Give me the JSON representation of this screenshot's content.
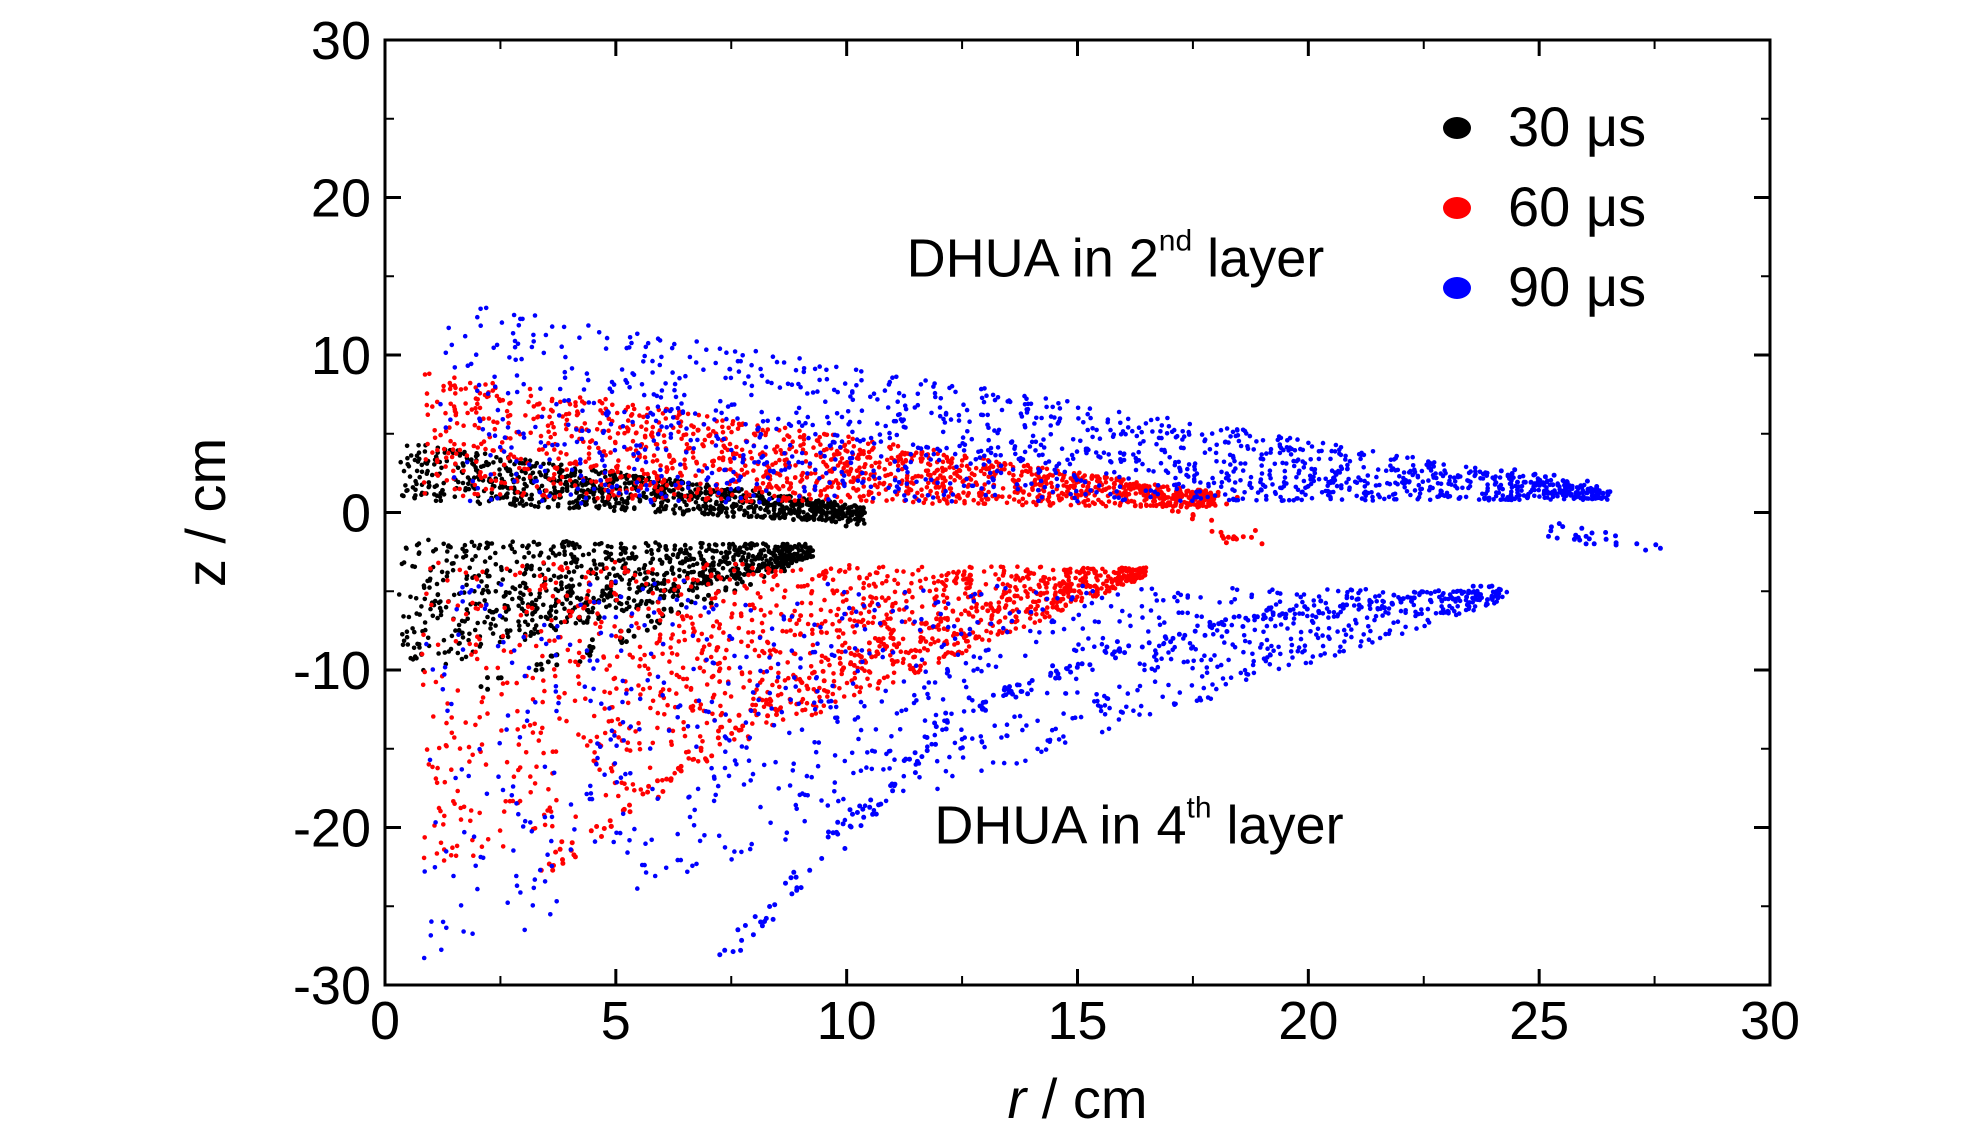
{
  "chart_data": {
    "type": "scatter",
    "xlabel": "r / cm",
    "ylabel": "z / cm",
    "xlim": [
      0,
      30
    ],
    "ylim": [
      -30,
      30
    ],
    "xticks": [
      0,
      5,
      10,
      15,
      20,
      25,
      30
    ],
    "yticks": [
      -30,
      -20,
      -10,
      0,
      10,
      20,
      30
    ],
    "legend_position": "top-right",
    "annotations": [
      {
        "text": "DHUA in 2",
        "sup": "nd",
        "suffix": " layer",
        "x": 11.3,
        "y": 15
      },
      {
        "text": "DHUA in 4",
        "sup": "th",
        "suffix": " layer",
        "x": 11.9,
        "y": -21
      }
    ],
    "series": [
      {
        "name": "30 μs",
        "color": "#000000",
        "regions": [
          {
            "x0": 0.3,
            "x1": 10.4,
            "topStart": 4.5,
            "topEnd": 0.4,
            "botStart": 0.8,
            "botEnd": -0.7,
            "count": 900
          },
          {
            "x0": 0.3,
            "x1": 9.3,
            "topStart": -1.7,
            "topEnd": -2.0,
            "botStart": -10.5,
            "botEnd": -2.8,
            "count": 900
          }
        ],
        "curves": [
          {
            "points": [
              [
                2.2,
                -10.8
              ],
              [
                4.5,
                -8.7
              ],
              [
                7.0,
                -5.3
              ],
              [
                9.0,
                -2.7
              ]
            ],
            "count": 70
          },
          {
            "points": [
              [
                5.0,
                1.7
              ],
              [
                8.0,
                0.9
              ],
              [
                10.4,
                -0.6
              ]
            ],
            "count": 40
          }
        ]
      },
      {
        "name": "60 μs",
        "color": "#ff0000",
        "regions": [
          {
            "x0": 0.8,
            "x1": 18.0,
            "topStart": 9.0,
            "topEnd": 1.2,
            "botStart": 1.0,
            "botEnd": 0.3,
            "count": 1400
          },
          {
            "x0": 0.8,
            "x1": 16.5,
            "topStart": -3.0,
            "topEnd": -3.5,
            "botStart": -23.5,
            "botEnd": -4.0,
            "count": 1300
          }
        ],
        "curves": [
          {
            "points": [
              [
                3.5,
                -22.5
              ],
              [
                6.0,
                -17.0
              ],
              [
                9.0,
                -11.0
              ],
              [
                12.0,
                -6.8
              ],
              [
                16.5,
                -3.8
              ]
            ],
            "count": 120
          },
          {
            "points": [
              [
                17.0,
                0.8
              ],
              [
                18.2,
                -1.5
              ],
              [
                18.9,
                -1.6
              ]
            ],
            "count": 25
          },
          {
            "points": [
              [
                17.3,
                1.0
              ],
              [
                18.4,
                0.9
              ]
            ],
            "count": 20
          }
        ]
      },
      {
        "name": "90 μs",
        "color": "#0000ff",
        "regions": [
          {
            "x0": 1.2,
            "x1": 26.5,
            "topStart": 13.5,
            "topEnd": 1.5,
            "botStart": 0.5,
            "botEnd": 0.8,
            "count": 1400
          },
          {
            "x0": 0.5,
            "x1": 24.3,
            "topStart": -4.0,
            "topEnd": -5.0,
            "botStart": -29.0,
            "botEnd": -5.5,
            "count": 1000
          }
        ],
        "curves": [
          {
            "points": [
              [
                7.3,
                -28.5
              ],
              [
                10.0,
                -20.0
              ],
              [
                12.5,
                -12.5
              ],
              [
                16.0,
                -8.5
              ],
              [
                20.0,
                -6.0
              ],
              [
                24.3,
                -5.0
              ]
            ],
            "count": 180
          },
          {
            "points": [
              [
                24.0,
                2.5
              ],
              [
                26.5,
                1.2
              ]
            ],
            "count": 35
          },
          {
            "points": [
              [
                25.0,
                -1.0
              ],
              [
                27.5,
                -2.2
              ]
            ],
            "count": 25
          }
        ]
      }
    ]
  }
}
